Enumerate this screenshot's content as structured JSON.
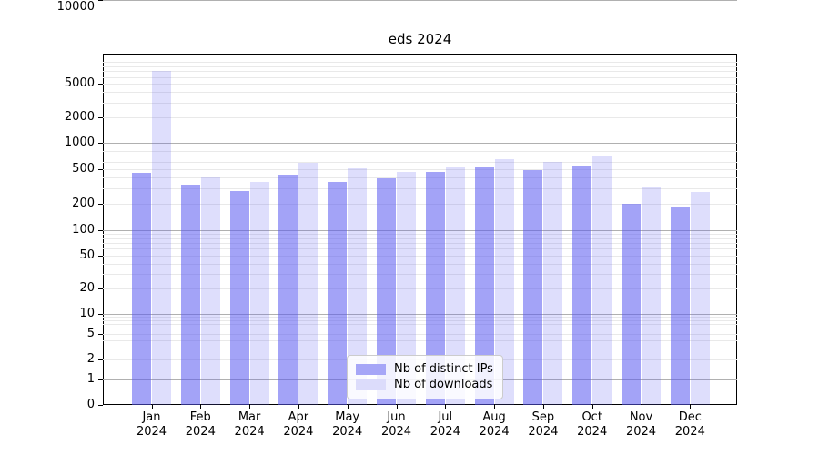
{
  "chart_data": {
    "type": "bar",
    "title": "eds 2024",
    "categories": [
      "Jan 2024",
      "Feb 2024",
      "Mar 2024",
      "Apr 2024",
      "May 2024",
      "Jun 2024",
      "Jul 2024",
      "Aug 2024",
      "Sep 2024",
      "Oct 2024",
      "Nov 2024",
      "Dec 2024"
    ],
    "month_labels": [
      "Jan",
      "Feb",
      "Mar",
      "Apr",
      "May",
      "Jun",
      "Jul",
      "Aug",
      "Sep",
      "Oct",
      "Nov",
      "Dec"
    ],
    "year_label": "2024",
    "series": [
      {
        "name": "Nb of distinct IPs",
        "color": "rgba(88,88,240,0.55)",
        "solid_color": "#a6a6f7",
        "values": [
          450,
          330,
          280,
          435,
          355,
          395,
          460,
          530,
          490,
          550,
          200,
          182
        ]
      },
      {
        "name": "Nb of downloads",
        "color": "rgba(88,88,240,0.20)",
        "solid_color": "#dcdcfb",
        "values": [
          7100,
          410,
          355,
          590,
          510,
          460,
          525,
          645,
          600,
          715,
          310,
          275
        ]
      }
    ],
    "yscale": "symlog",
    "y_ticks": [
      0,
      1,
      2,
      5,
      10,
      20,
      50,
      100,
      200,
      500,
      1000,
      2000,
      5000,
      10000
    ],
    "ylim": [
      0,
      10000
    ],
    "xlabel": "",
    "ylabel": "",
    "grid": "horizontal, major and minor",
    "major_grid_color": "#b0b0b0",
    "minor_grid_color": "#e9e9e9",
    "legend_position": "lower center"
  }
}
